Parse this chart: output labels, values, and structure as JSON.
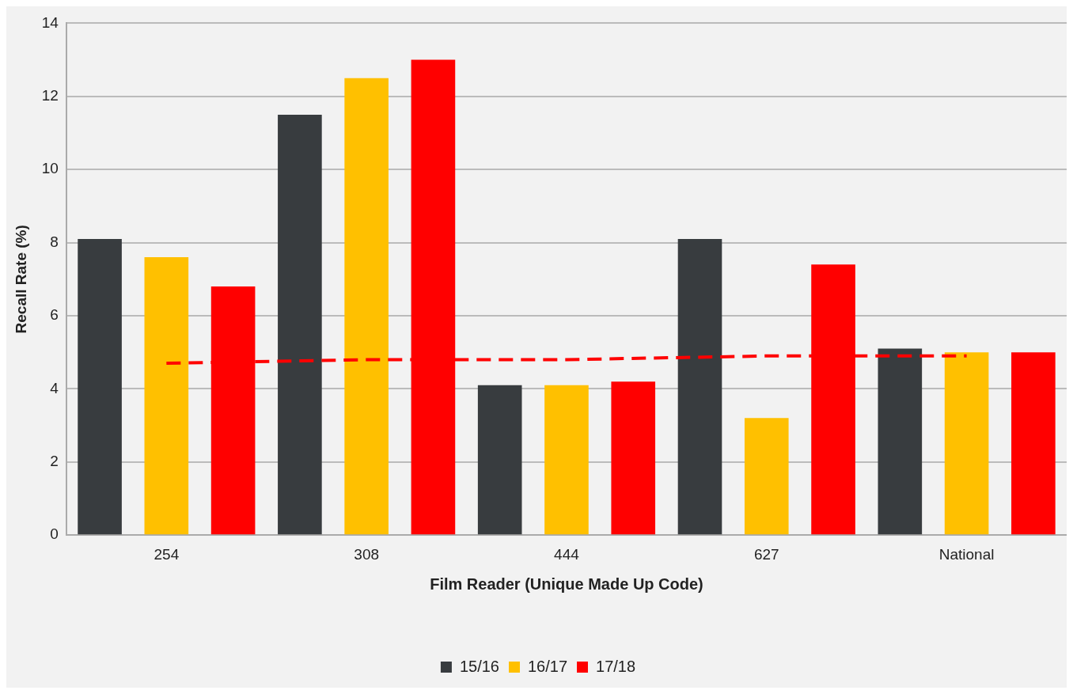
{
  "chart_data": {
    "type": "bar",
    "xlabel": "Film Reader (Unique Made Up Code)",
    "ylabel": "Recall Rate (%)",
    "categories": [
      "254",
      "308",
      "444",
      "627",
      "National"
    ],
    "series": [
      {
        "name": "15/16",
        "color": "#383c3f",
        "values": [
          8.1,
          11.5,
          4.1,
          8.1,
          5.1
        ]
      },
      {
        "name": "16/17",
        "color": "#ffc000",
        "values": [
          7.6,
          12.5,
          4.1,
          3.2,
          5.0
        ]
      },
      {
        "name": "17/18",
        "color": "#ff0000",
        "values": [
          6.8,
          13.0,
          4.2,
          7.4,
          5.0
        ]
      },
      {
        "type": "line",
        "color": "#ff0000",
        "line_style": "dashed",
        "marker": "none",
        "values": [
          4.7,
          4.8,
          4.8,
          4.9,
          4.9
        ]
      }
    ],
    "ylim": [
      0,
      14
    ],
    "yticks": [
      0,
      2,
      4,
      6,
      8,
      10,
      12,
      14
    ],
    "grid": "y",
    "legend": "bottom"
  }
}
